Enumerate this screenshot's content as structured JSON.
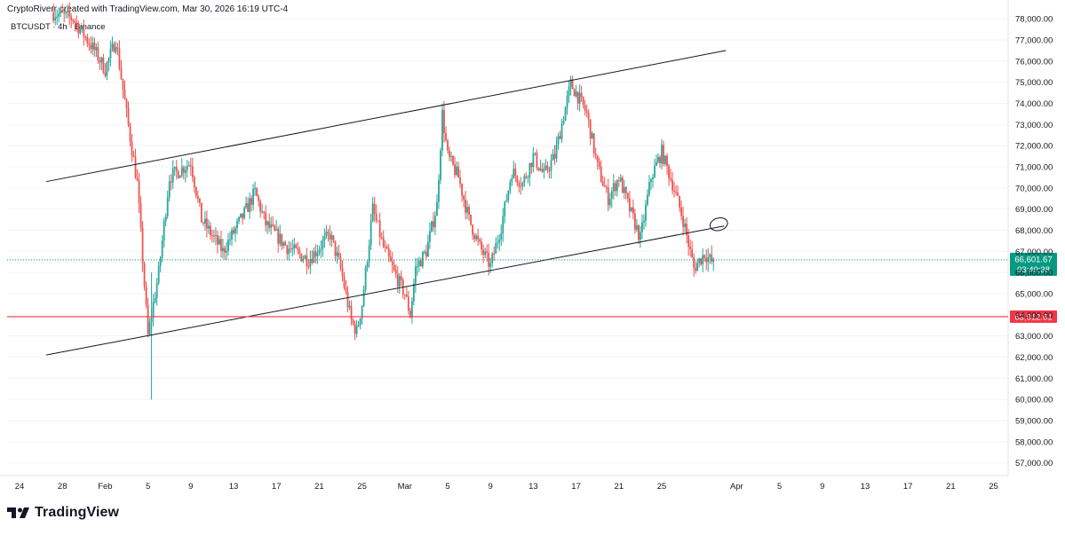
{
  "header": {
    "text": "CryptoRiverr created with TradingView.com, Mar 30, 2026 16:19 UTC-4",
    "symbol": "BTCUSDT · 4h · Binance"
  },
  "footer": {
    "logo_text": "TradingView"
  },
  "colors": {
    "up": "#26a69a",
    "down": "#ef5350",
    "channel": "#131722",
    "support": "#f23645",
    "current": "#089981",
    "grid": "#f0f3fa",
    "axis_text": "#131722"
  },
  "chart_data": {
    "type": "candlestick",
    "title": "",
    "symbol": "BTCUSDT",
    "interval": "4h",
    "exchange": "Binance",
    "x_axis": {
      "labels": [
        "24",
        "28",
        "Feb",
        "5",
        "9",
        "13",
        "17",
        "21",
        "25",
        "Mar",
        "5",
        "9",
        "13",
        "17",
        "21",
        "25",
        "Apr",
        "5",
        "9",
        "13",
        "17",
        "21",
        "25"
      ]
    },
    "y_axis": {
      "ticks": [
        57000,
        58000,
        59000,
        60000,
        61000,
        62000,
        63000,
        64000,
        65000,
        66000,
        67000,
        68000,
        69000,
        70000,
        71000,
        72000,
        73000,
        74000,
        75000,
        76000,
        77000,
        78000
      ],
      "tick_labels": [
        "57,000.00",
        "58,000.00",
        "59,000.00",
        "60,000.00",
        "61,000.00",
        "62,000.00",
        "63,000.00",
        "64,000.00",
        "65,000.00",
        "66,000.00",
        "67,000.00",
        "68,000.00",
        "69,000.00",
        "70,000.00",
        "71,000.00",
        "72,000.00",
        "73,000.00",
        "74,000.00",
        "75,000.00",
        "76,000.00",
        "77,000.00",
        "78,000.00"
      ],
      "range": [
        56400,
        78300
      ]
    },
    "path": [
      [
        "Jan 27",
        78300
      ],
      [
        "Jan 29",
        78000
      ],
      [
        "Jan 31",
        76500
      ],
      [
        "Feb 1",
        75600
      ],
      [
        "Feb 2",
        77000
      ],
      [
        "Feb 3",
        73500
      ],
      [
        "Feb 4",
        70200
      ],
      [
        "Feb 5",
        63000
      ],
      [
        "Feb 6",
        66000
      ],
      [
        "Feb 7",
        70500
      ],
      [
        "Feb 9",
        71200
      ],
      [
        "Feb 10",
        68500
      ],
      [
        "Feb 12",
        67000
      ],
      [
        "Feb 14",
        68800
      ],
      [
        "Feb 15",
        69800
      ],
      [
        "Feb 16",
        68300
      ],
      [
        "Feb 18",
        67200
      ],
      [
        "Feb 20",
        66600
      ],
      [
        "Feb 22",
        67800
      ],
      [
        "Feb 23",
        66200
      ],
      [
        "Feb 24",
        63700
      ],
      [
        "Feb 24 12:00",
        63200
      ],
      [
        "Feb 25",
        64500
      ],
      [
        "Feb 26",
        69000
      ],
      [
        "Feb 27",
        67200
      ],
      [
        "Feb 28",
        66000
      ],
      [
        "Mar 1",
        65000
      ],
      [
        "Mar 1 12:00",
        64000
      ],
      [
        "Mar 2",
        66200
      ],
      [
        "Mar 3",
        67000
      ],
      [
        "Mar 4",
        69200
      ],
      [
        "Mar 4 12:00",
        73500
      ],
      [
        "Mar 5",
        71500
      ],
      [
        "Mar 6",
        70500
      ],
      [
        "Mar 7",
        68500
      ],
      [
        "Mar 8",
        67200
      ],
      [
        "Mar 9",
        66300
      ],
      [
        "Mar 10",
        68200
      ],
      [
        "Mar 11",
        70800
      ],
      [
        "Mar 12",
        70200
      ],
      [
        "Mar 13",
        71500
      ],
      [
        "Mar 14",
        70600
      ],
      [
        "Mar 15",
        71500
      ],
      [
        "Mar 16",
        73800
      ],
      [
        "Mar 16 12:00",
        74900
      ],
      [
        "Mar 17",
        74500
      ],
      [
        "Mar 18",
        73500
      ],
      [
        "Mar 19",
        71000
      ],
      [
        "Mar 20",
        69500
      ],
      [
        "Mar 21",
        70500
      ],
      [
        "Mar 22",
        69000
      ],
      [
        "Mar 23",
        67600
      ],
      [
        "Mar 24",
        70500
      ],
      [
        "Mar 25",
        71700
      ],
      [
        "Mar 26",
        70200
      ],
      [
        "Mar 27",
        68500
      ],
      [
        "Mar 28",
        66200
      ],
      [
        "Mar 29",
        66900
      ],
      [
        "Mar 30",
        66300
      ],
      [
        "Mar 30 12:00",
        67800
      ],
      [
        "Mar 30 16:00",
        66601.67
      ]
    ],
    "channel": {
      "upper": [
        [
          "Jan 24",
          70300
        ],
        [
          "Mar 31",
          76500
        ]
      ],
      "lower": [
        [
          "Jan 24",
          62100
        ],
        [
          "Mar 30",
          68200
        ]
      ]
    },
    "support_line": {
      "value": 63912.61,
      "label": "63,912.61"
    },
    "current_price": {
      "value": 66601.67,
      "label": "66,601.67",
      "countdown": "03:40:38"
    },
    "annotations": [
      {
        "type": "ellipse",
        "at": [
          "Mar 30",
          68200
        ]
      }
    ]
  }
}
